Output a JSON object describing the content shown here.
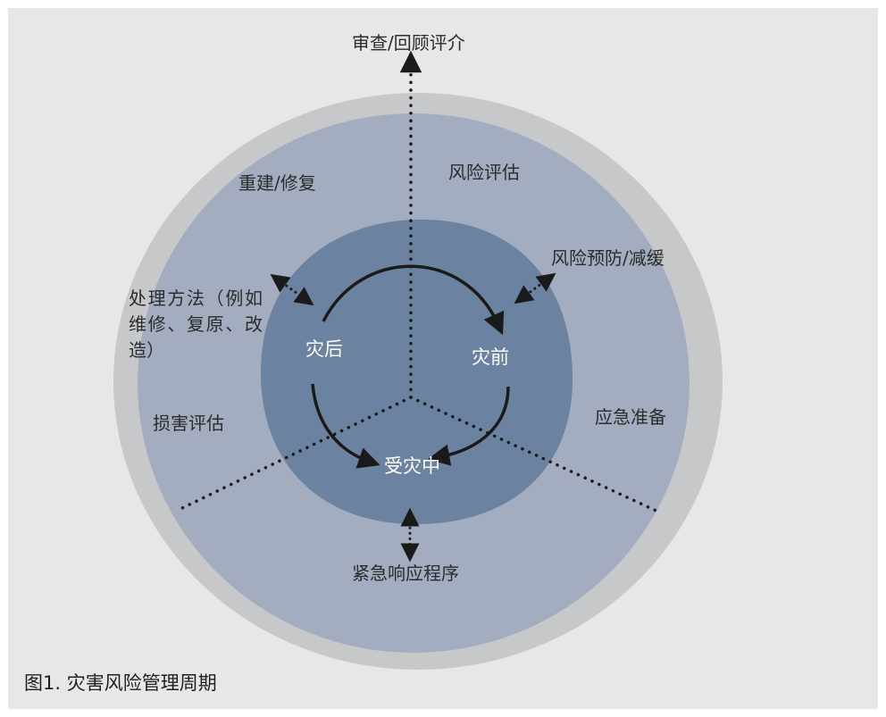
{
  "diagram": {
    "center_labels": {
      "before": "灾前",
      "during": "受灾中",
      "after": "灾后"
    },
    "outer_labels": {
      "review": "审查/回顾评介",
      "risk_assessment": "风险评估",
      "risk_prevention": "风险预防/减缓",
      "preparedness": "应急准备",
      "emergency_response": "紧急响应程序",
      "damage_assessment": "损害评估",
      "treatment_methods": "处理方法（例如维修、复原、改造）",
      "reconstruction": "重建/修复"
    },
    "colors": {
      "background": "#e6e7e8",
      "outer_ring": "#c7c8ca",
      "middle_disk": "#a3adbf",
      "inner_disk": "#6b83a0",
      "dots": "#1a1a1a",
      "arrows": "#1a1a1a"
    }
  },
  "caption": "图1. 灾害风险管理周期"
}
